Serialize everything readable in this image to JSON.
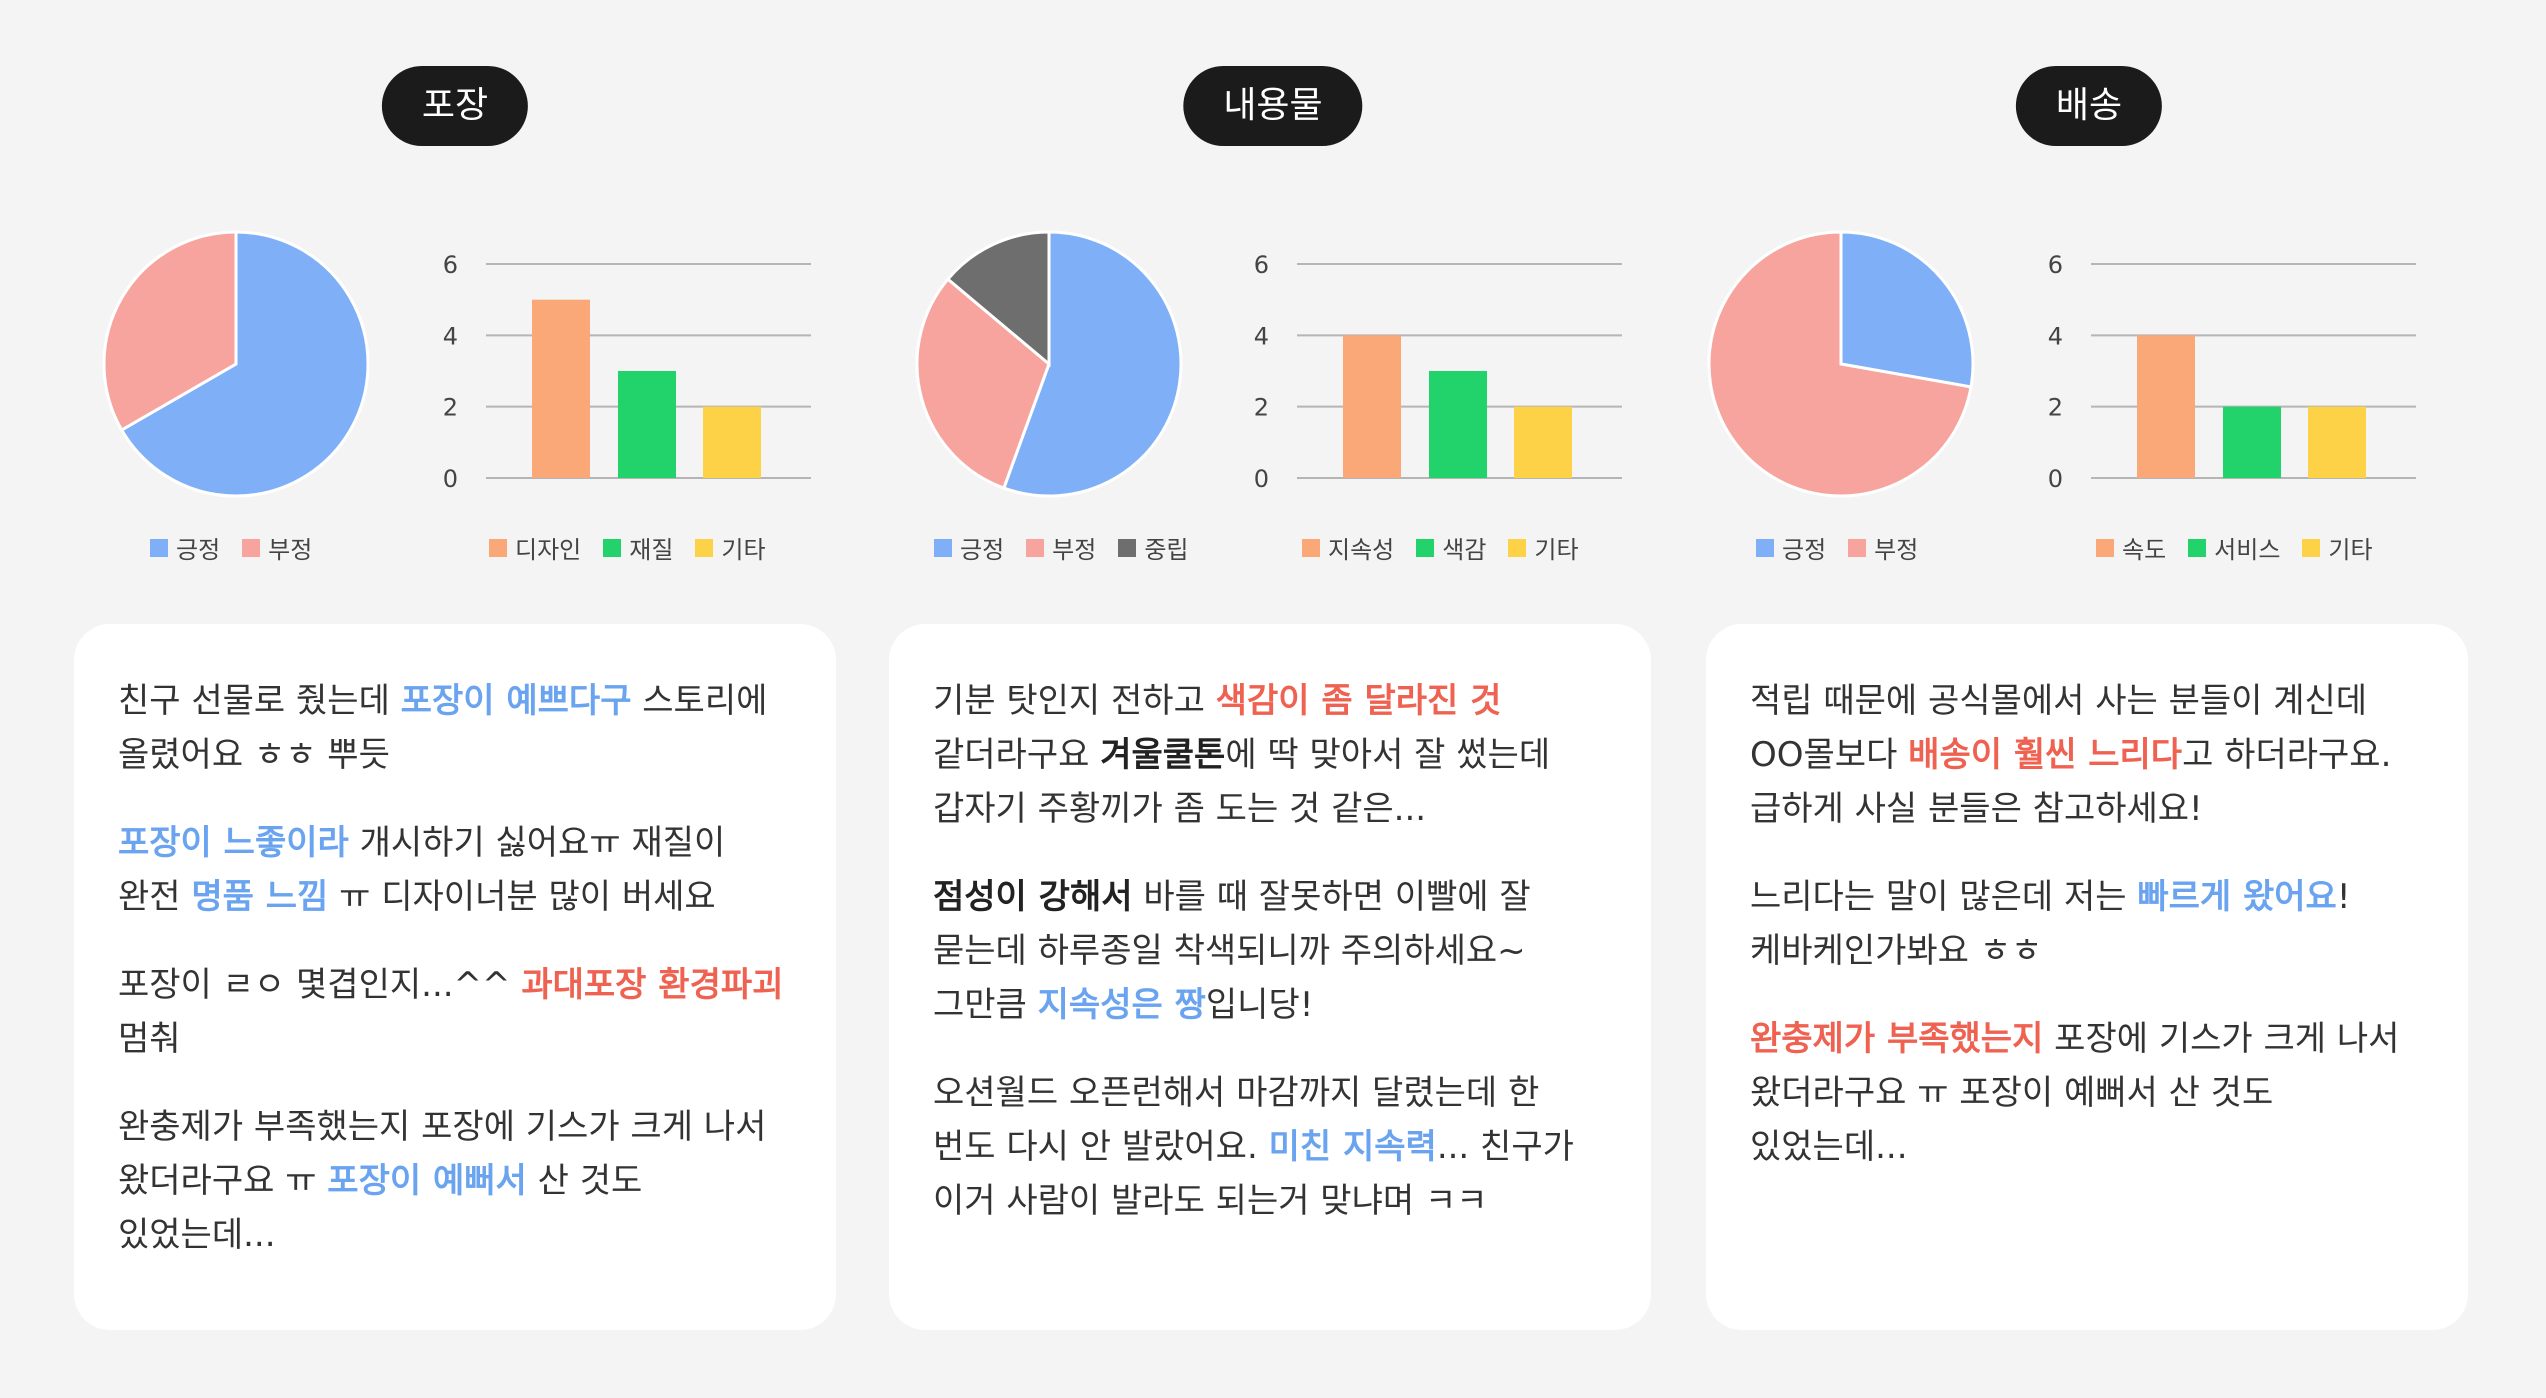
{
  "colors": {
    "positive": "#7fb0f7",
    "negative": "#f7a49e",
    "neutral": "#6e6e6e",
    "bar1": "#fba878",
    "bar2": "#22d36b",
    "bar3": "#fdd247",
    "grid": "#b5b5b5",
    "highlight_positive": "#6aa3ef",
    "highlight_negative": "#ef6251"
  },
  "sections": [
    {
      "title": "포장",
      "reviews": [
        {
          "segments": [
            {
              "text": "친구 선물로 줬는데 ",
              "style": "plain"
            },
            {
              "text": "포장이 예쁘다구",
              "style": "pos"
            },
            {
              "text": " 스토리에 올렸어요 ㅎㅎ 뿌듯",
              "style": "plain"
            }
          ]
        },
        {
          "segments": [
            {
              "text": "포장이 느좋이라",
              "style": "pos"
            },
            {
              "text": " 개시하기 싫어요ㅠ 재질이 완전 ",
              "style": "plain"
            },
            {
              "text": "명품 느낌",
              "style": "pos"
            },
            {
              "text": " ㅠ 디자이너분 많이 버세요",
              "style": "plain"
            }
          ]
        },
        {
          "segments": [
            {
              "text": "포장이 ㄹㅇ 몇겹인지...^^ ",
              "style": "plain"
            },
            {
              "text": "과대포장 환경파괴",
              "style": "neg"
            },
            {
              "text": " 멈춰",
              "style": "plain"
            }
          ]
        },
        {
          "segments": [
            {
              "text": "완충제가 부족했는지 포장에 기스가 크게 나서 왔더라구요 ㅠ ",
              "style": "plain"
            },
            {
              "text": "포장이 예뻐서",
              "style": "pos"
            },
            {
              "text": " 산 것도 있었는데...",
              "style": "plain"
            }
          ]
        }
      ]
    },
    {
      "title": "내용물",
      "reviews": [
        {
          "segments": [
            {
              "text": "기분 탓인지 전하고 ",
              "style": "plain"
            },
            {
              "text": "색감이 좀 달라진 것",
              "style": "neg"
            },
            {
              "text": " 같더라구요 ",
              "style": "plain"
            },
            {
              "text": "겨울쿨톤",
              "style": "strong"
            },
            {
              "text": "에 딱 맞아서 잘 썼는데 갑자기 주황끼가 좀 도는 것 같은...",
              "style": "plain"
            }
          ]
        },
        {
          "segments": [
            {
              "text": "점성이 강해서",
              "style": "strong"
            },
            {
              "text": " 바를 때 잘못하면 이빨에 잘 묻는데 하루종일 착색되니까 주의하세요~ 그만큼 ",
              "style": "plain"
            },
            {
              "text": "지속성은 짱",
              "style": "pos"
            },
            {
              "text": "입니당!",
              "style": "plain"
            }
          ]
        },
        {
          "segments": [
            {
              "text": "오션월드 오픈런해서 마감까지 달렸는데 한 번도 다시 안 발랐어요. ",
              "style": "plain"
            },
            {
              "text": "미친 지속력",
              "style": "pos"
            },
            {
              "text": "... 친구가 이거 사람이 발라도 되는거 맞냐며 ㅋㅋ",
              "style": "plain"
            }
          ]
        }
      ]
    },
    {
      "title": "배송",
      "reviews": [
        {
          "segments": [
            {
              "text": "적립 때문에 공식몰에서 사는 분들이 계신데 OO몰보다 ",
              "style": "plain"
            },
            {
              "text": "배송이 훨씬 느리다",
              "style": "neg"
            },
            {
              "text": "고 하더라구요. 급하게 사실 분들은 참고하세요!",
              "style": "plain"
            }
          ]
        },
        {
          "segments": [
            {
              "text": "느리다는 말이 많은데 저는 ",
              "style": "plain"
            },
            {
              "text": "빠르게 왔어요",
              "style": "pos"
            },
            {
              "text": "! 케바케인가봐요 ㅎㅎ",
              "style": "plain"
            }
          ]
        },
        {
          "segments": [
            {
              "text": "완충제가 부족했는지",
              "style": "neg"
            },
            {
              "text": " 포장에 기스가 크게 나서 왔더라구요 ㅠ 포장이 예뻐서 산 것도 있었는데...",
              "style": "plain"
            }
          ]
        }
      ]
    }
  ],
  "chart_data": [
    {
      "type": "pie",
      "section": "포장",
      "labels": [
        "긍정",
        "부정"
      ],
      "values": [
        2,
        1
      ],
      "colors": [
        "#7fb0f7",
        "#f7a49e"
      ]
    },
    {
      "type": "bar",
      "section": "포장",
      "categories": [
        "디자인",
        "재질",
        "기타"
      ],
      "values": [
        5,
        3,
        2
      ],
      "colors": [
        "#fba878",
        "#22d36b",
        "#fdd247"
      ],
      "ylim": [
        0,
        6
      ],
      "yticks": [
        "0",
        "2",
        "4",
        "6"
      ],
      "grid": true
    },
    {
      "type": "pie",
      "section": "내용물",
      "labels": [
        "긍정",
        "부정",
        "중립"
      ],
      "values": [
        4,
        2.2,
        1
      ],
      "colors": [
        "#7fb0f7",
        "#f7a49e",
        "#6e6e6e"
      ]
    },
    {
      "type": "bar",
      "section": "내용물",
      "categories": [
        "지속성",
        "색감",
        "기타"
      ],
      "values": [
        4,
        3,
        2
      ],
      "colors": [
        "#fba878",
        "#22d36b",
        "#fdd247"
      ],
      "ylim": [
        0,
        6
      ],
      "yticks": [
        "0",
        "2",
        "4",
        "6"
      ],
      "grid": true
    },
    {
      "type": "pie",
      "section": "배송",
      "labels": [
        "긍정",
        "부정"
      ],
      "values": [
        1,
        2.6
      ],
      "colors": [
        "#7fb0f7",
        "#f7a49e"
      ]
    },
    {
      "type": "bar",
      "section": "배송",
      "categories": [
        "속도",
        "서비스",
        "기타"
      ],
      "values": [
        4,
        2,
        2
      ],
      "colors": [
        "#fba878",
        "#22d36b",
        "#fdd247"
      ],
      "ylim": [
        0,
        6
      ],
      "yticks": [
        "0",
        "2",
        "4",
        "6"
      ],
      "grid": true
    }
  ]
}
